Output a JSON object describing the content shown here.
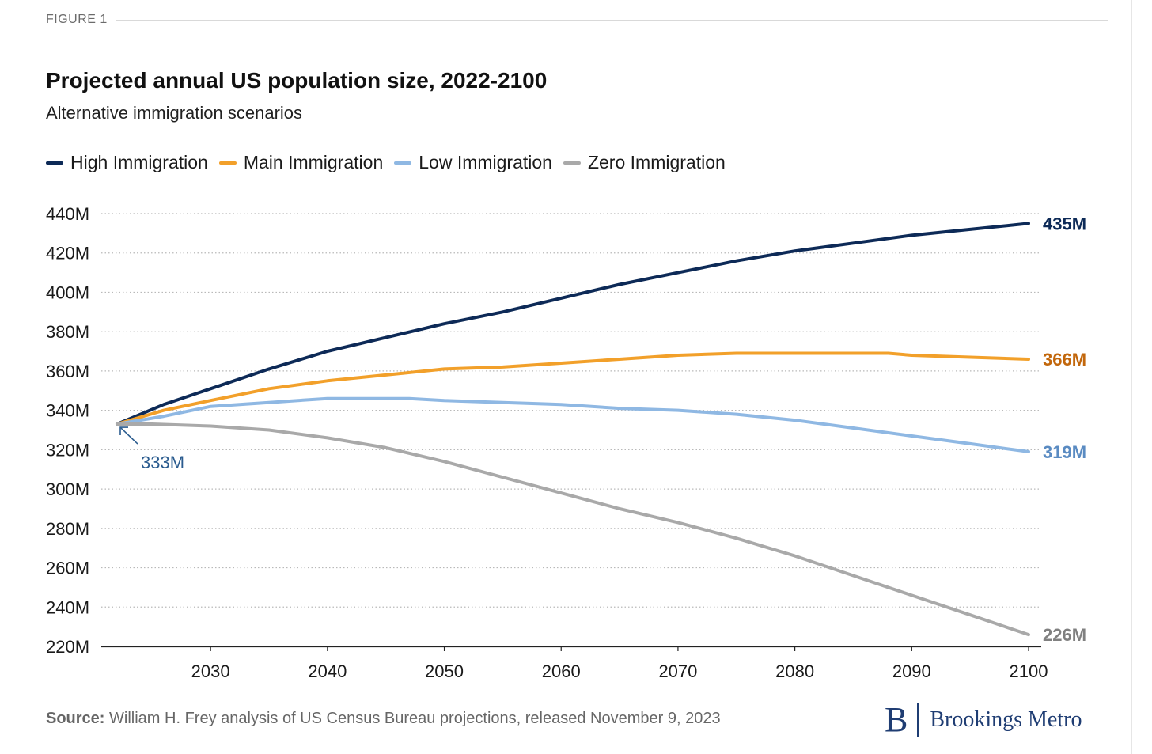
{
  "header": {
    "figure_label": "FIGURE 1"
  },
  "source": {
    "label": "Source:",
    "text": " William H. Frey analysis of US Census Bureau projections, released November 9, 2023"
  },
  "brand": {
    "mark": "B",
    "name": "Brookings Metro",
    "color": "#1f3d73"
  },
  "chart_data": {
    "type": "line",
    "title": "Projected annual US population size, 2022-2100",
    "subtitle": "Alternative immigration scenarios",
    "xlabel": "",
    "ylabel": "",
    "xlim": [
      2022,
      2100
    ],
    "ylim": [
      220,
      440
    ],
    "y_unit_suffix": "M",
    "x_ticks": [
      2030,
      2040,
      2050,
      2060,
      2070,
      2080,
      2090,
      2100
    ],
    "y_ticks": [
      220,
      240,
      260,
      280,
      300,
      320,
      340,
      360,
      380,
      400,
      420,
      440
    ],
    "grid": "horizontal dotted",
    "legend_position": "top-left",
    "start_annotation": {
      "x": 2022,
      "y": 333,
      "label": "333M",
      "color": "#2b5c8f"
    },
    "series": [
      {
        "name": "High Immigration",
        "color": "#0d2a57",
        "end_label": "435M",
        "end_label_color": "#0d2a57",
        "points": [
          [
            2022,
            333
          ],
          [
            2026,
            343
          ],
          [
            2030,
            351
          ],
          [
            2035,
            361
          ],
          [
            2040,
            370
          ],
          [
            2045,
            377
          ],
          [
            2050,
            384
          ],
          [
            2055,
            390
          ],
          [
            2060,
            397
          ],
          [
            2065,
            404
          ],
          [
            2070,
            410
          ],
          [
            2075,
            416
          ],
          [
            2080,
            421
          ],
          [
            2085,
            425
          ],
          [
            2090,
            429
          ],
          [
            2095,
            432
          ],
          [
            2100,
            435
          ]
        ]
      },
      {
        "name": "Main Immigration",
        "color": "#f2a02a",
        "end_label": "366M",
        "end_label_color": "#c2670c",
        "points": [
          [
            2022,
            333
          ],
          [
            2026,
            340
          ],
          [
            2030,
            345
          ],
          [
            2035,
            351
          ],
          [
            2040,
            355
          ],
          [
            2045,
            358
          ],
          [
            2050,
            361
          ],
          [
            2055,
            362
          ],
          [
            2060,
            364
          ],
          [
            2065,
            366
          ],
          [
            2070,
            368
          ],
          [
            2075,
            369
          ],
          [
            2080,
            369
          ],
          [
            2085,
            369
          ],
          [
            2088,
            369
          ],
          [
            2090,
            368
          ],
          [
            2095,
            367
          ],
          [
            2100,
            366
          ]
        ]
      },
      {
        "name": "Low Immigration",
        "color": "#8fb8e3",
        "end_label": "319M",
        "end_label_color": "#5a8bc2",
        "points": [
          [
            2022,
            333
          ],
          [
            2026,
            337
          ],
          [
            2030,
            342
          ],
          [
            2035,
            344
          ],
          [
            2040,
            346
          ],
          [
            2045,
            346
          ],
          [
            2047,
            346
          ],
          [
            2050,
            345
          ],
          [
            2055,
            344
          ],
          [
            2060,
            343
          ],
          [
            2065,
            341
          ],
          [
            2070,
            340
          ],
          [
            2075,
            338
          ],
          [
            2080,
            335
          ],
          [
            2085,
            331
          ],
          [
            2090,
            327
          ],
          [
            2095,
            323
          ],
          [
            2100,
            319
          ]
        ]
      },
      {
        "name": "Zero Immigration",
        "color": "#a9a9a9",
        "end_label": "226M",
        "end_label_color": "#808080",
        "points": [
          [
            2022,
            333
          ],
          [
            2025,
            333
          ],
          [
            2030,
            332
          ],
          [
            2035,
            330
          ],
          [
            2040,
            326
          ],
          [
            2045,
            321
          ],
          [
            2050,
            314
          ],
          [
            2055,
            306
          ],
          [
            2060,
            298
          ],
          [
            2065,
            290
          ],
          [
            2070,
            283
          ],
          [
            2075,
            275
          ],
          [
            2080,
            266
          ],
          [
            2085,
            256
          ],
          [
            2090,
            246
          ],
          [
            2095,
            236
          ],
          [
            2100,
            226
          ]
        ]
      }
    ]
  }
}
